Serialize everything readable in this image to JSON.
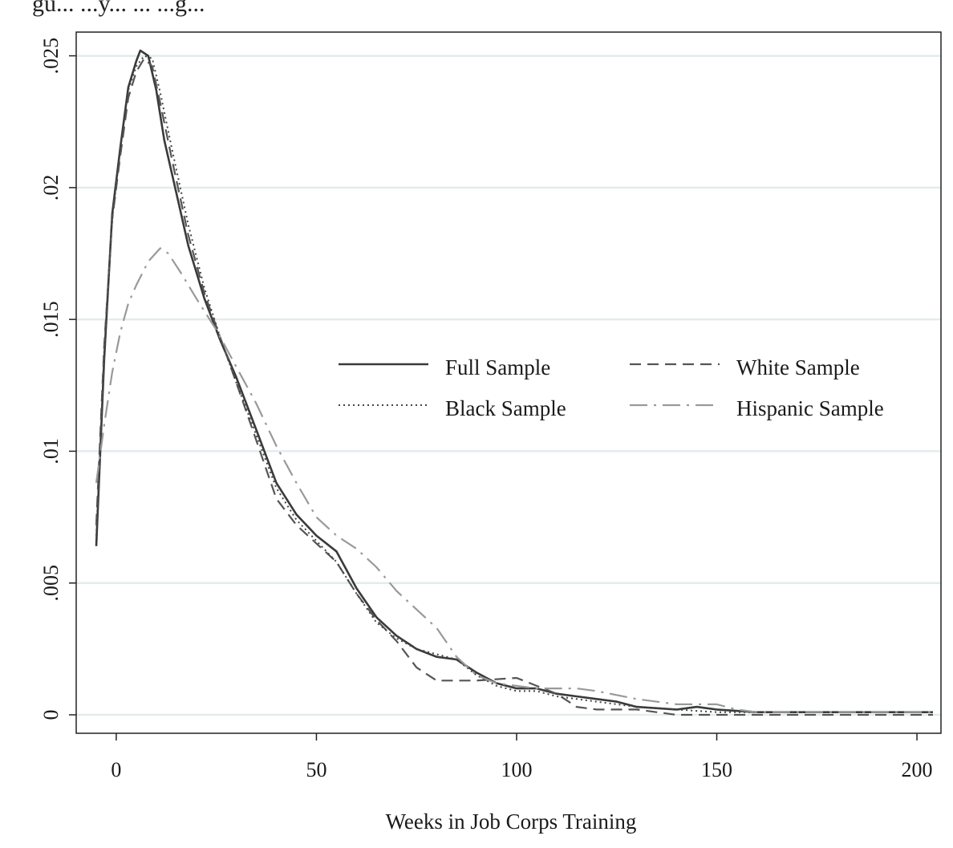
{
  "page": {
    "caption_fragment": "gu... ...y... ... ...g..."
  },
  "chart_data": {
    "type": "line",
    "title": "",
    "xlabel": "Weeks in Job Corps Training",
    "ylabel": "",
    "xlim": [
      -10,
      206
    ],
    "ylim": [
      -0.0007,
      0.0259
    ],
    "x_ticks": [
      0,
      50,
      100,
      150,
      200
    ],
    "x_tick_labels": [
      "0",
      "50",
      "100",
      "150",
      "200"
    ],
    "y_ticks": [
      0,
      0.005,
      0.01,
      0.015,
      0.02,
      0.025
    ],
    "y_tick_labels": [
      "0",
      ".005",
      ".01",
      ".015",
      ".02",
      ".025"
    ],
    "grid": "horizontal",
    "legend_position": "center-right",
    "series": [
      {
        "name": "Full Sample",
        "style": "solid",
        "color": "#3a3a3a",
        "points": [
          [
            -5,
            0.0064
          ],
          [
            -3,
            0.0135
          ],
          [
            -1,
            0.019
          ],
          [
            1,
            0.0215
          ],
          [
            3,
            0.0238
          ],
          [
            5,
            0.0248
          ],
          [
            6,
            0.0252
          ],
          [
            8,
            0.025
          ],
          [
            10,
            0.0237
          ],
          [
            12,
            0.0218
          ],
          [
            15,
            0.0198
          ],
          [
            18,
            0.0178
          ],
          [
            22,
            0.0158
          ],
          [
            26,
            0.0142
          ],
          [
            30,
            0.0128
          ],
          [
            35,
            0.0108
          ],
          [
            40,
            0.0088
          ],
          [
            45,
            0.0076
          ],
          [
            50,
            0.0068
          ],
          [
            55,
            0.0062
          ],
          [
            60,
            0.0048
          ],
          [
            65,
            0.0037
          ],
          [
            70,
            0.003
          ],
          [
            75,
            0.0025
          ],
          [
            80,
            0.0022
          ],
          [
            85,
            0.0021
          ],
          [
            90,
            0.0016
          ],
          [
            95,
            0.0012
          ],
          [
            100,
            0.001
          ],
          [
            105,
            0.001
          ],
          [
            110,
            0.0008
          ],
          [
            115,
            0.0007
          ],
          [
            120,
            0.0006
          ],
          [
            125,
            0.0005
          ],
          [
            130,
            0.0003
          ],
          [
            140,
            0.0002
          ],
          [
            145,
            0.0003
          ],
          [
            150,
            0.0002
          ],
          [
            160,
            0.0001
          ],
          [
            180,
            0.0001
          ],
          [
            190,
            0.0001
          ],
          [
            200,
            0.0001
          ],
          [
            204,
            0.0001
          ]
        ]
      },
      {
        "name": "White Sample",
        "style": "dashed",
        "color": "#555555",
        "points": [
          [
            -5,
            0.0072
          ],
          [
            -3,
            0.014
          ],
          [
            -1,
            0.0188
          ],
          [
            1,
            0.0212
          ],
          [
            3,
            0.0234
          ],
          [
            5,
            0.0244
          ],
          [
            7,
            0.0249
          ],
          [
            9,
            0.0246
          ],
          [
            11,
            0.0232
          ],
          [
            14,
            0.021
          ],
          [
            18,
            0.0182
          ],
          [
            22,
            0.016
          ],
          [
            26,
            0.0143
          ],
          [
            30,
            0.0126
          ],
          [
            35,
            0.0104
          ],
          [
            40,
            0.0082
          ],
          [
            45,
            0.0072
          ],
          [
            50,
            0.0065
          ],
          [
            55,
            0.0058
          ],
          [
            60,
            0.0046
          ],
          [
            65,
            0.0036
          ],
          [
            70,
            0.0028
          ],
          [
            75,
            0.0018
          ],
          [
            80,
            0.0013
          ],
          [
            90,
            0.0013
          ],
          [
            100,
            0.0014
          ],
          [
            110,
            0.0008
          ],
          [
            115,
            0.0003
          ],
          [
            120,
            0.0002
          ],
          [
            130,
            0.0002
          ],
          [
            140,
            0.0
          ],
          [
            150,
            0.0
          ],
          [
            160,
            0.0
          ],
          [
            180,
            0.0
          ],
          [
            200,
            0.0
          ],
          [
            204,
            0.0
          ]
        ]
      },
      {
        "name": "Black Sample",
        "style": "dotted",
        "color": "#444444",
        "points": [
          [
            -5,
            0.0068
          ],
          [
            -3,
            0.0138
          ],
          [
            -1,
            0.0188
          ],
          [
            1,
            0.0214
          ],
          [
            3,
            0.0237
          ],
          [
            5,
            0.0246
          ],
          [
            7,
            0.025
          ],
          [
            9,
            0.0249
          ],
          [
            11,
            0.0236
          ],
          [
            14,
            0.0214
          ],
          [
            18,
            0.0186
          ],
          [
            22,
            0.0162
          ],
          [
            26,
            0.0143
          ],
          [
            30,
            0.0126
          ],
          [
            35,
            0.0106
          ],
          [
            40,
            0.0086
          ],
          [
            45,
            0.0074
          ],
          [
            50,
            0.0066
          ],
          [
            55,
            0.0058
          ],
          [
            60,
            0.0046
          ],
          [
            65,
            0.0035
          ],
          [
            70,
            0.0029
          ],
          [
            75,
            0.0025
          ],
          [
            80,
            0.0023
          ],
          [
            85,
            0.0021
          ],
          [
            90,
            0.0015
          ],
          [
            95,
            0.0011
          ],
          [
            100,
            0.0009
          ],
          [
            105,
            0.0009
          ],
          [
            110,
            0.0007
          ],
          [
            120,
            0.0005
          ],
          [
            130,
            0.0003
          ],
          [
            140,
            0.0002
          ],
          [
            150,
            0.0001
          ],
          [
            160,
            0.0001
          ],
          [
            180,
            0.0001
          ],
          [
            204,
            0.0001
          ]
        ]
      },
      {
        "name": "Hispanic Sample",
        "style": "dashdot",
        "color": "#999999",
        "points": [
          [
            -5,
            0.0088
          ],
          [
            -3,
            0.011
          ],
          [
            -1,
            0.013
          ],
          [
            1,
            0.0145
          ],
          [
            3,
            0.0156
          ],
          [
            5,
            0.0163
          ],
          [
            8,
            0.0172
          ],
          [
            11,
            0.0177
          ],
          [
            13,
            0.0175
          ],
          [
            16,
            0.0168
          ],
          [
            20,
            0.0158
          ],
          [
            25,
            0.0146
          ],
          [
            30,
            0.0132
          ],
          [
            35,
            0.0118
          ],
          [
            40,
            0.0102
          ],
          [
            45,
            0.0088
          ],
          [
            50,
            0.0075
          ],
          [
            55,
            0.0068
          ],
          [
            60,
            0.0063
          ],
          [
            65,
            0.0056
          ],
          [
            70,
            0.0047
          ],
          [
            75,
            0.004
          ],
          [
            80,
            0.0033
          ],
          [
            85,
            0.0022
          ],
          [
            90,
            0.0015
          ],
          [
            95,
            0.0012
          ],
          [
            100,
            0.0011
          ],
          [
            105,
            0.001
          ],
          [
            110,
            0.001
          ],
          [
            115,
            0.001
          ],
          [
            120,
            0.0009
          ],
          [
            130,
            0.0006
          ],
          [
            140,
            0.0004
          ],
          [
            145,
            0.0004
          ],
          [
            150,
            0.0004
          ],
          [
            155,
            0.0002
          ],
          [
            160,
            0.0001
          ],
          [
            180,
            0.0001
          ],
          [
            200,
            0.0001
          ],
          [
            204,
            0.0001
          ]
        ]
      }
    ]
  }
}
